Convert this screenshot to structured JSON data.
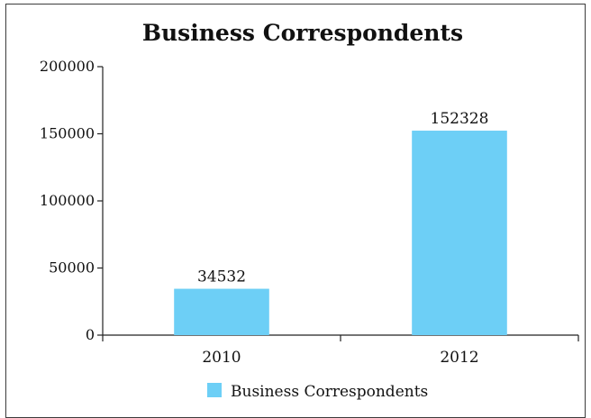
{
  "chart_data": {
    "type": "bar",
    "title": "Business Correspondents",
    "categories": [
      "2010",
      "2012"
    ],
    "series": [
      {
        "name": "Business Correspondents",
        "values": [
          34532,
          152328
        ],
        "color": "#6dcff6"
      }
    ],
    "data_labels": [
      "34532",
      "152328"
    ],
    "y_ticks": [
      "0",
      "50000",
      "100000",
      "150000",
      "200000"
    ],
    "ylim": [
      0,
      200000
    ],
    "grid": false,
    "legend_position": "bottom"
  }
}
